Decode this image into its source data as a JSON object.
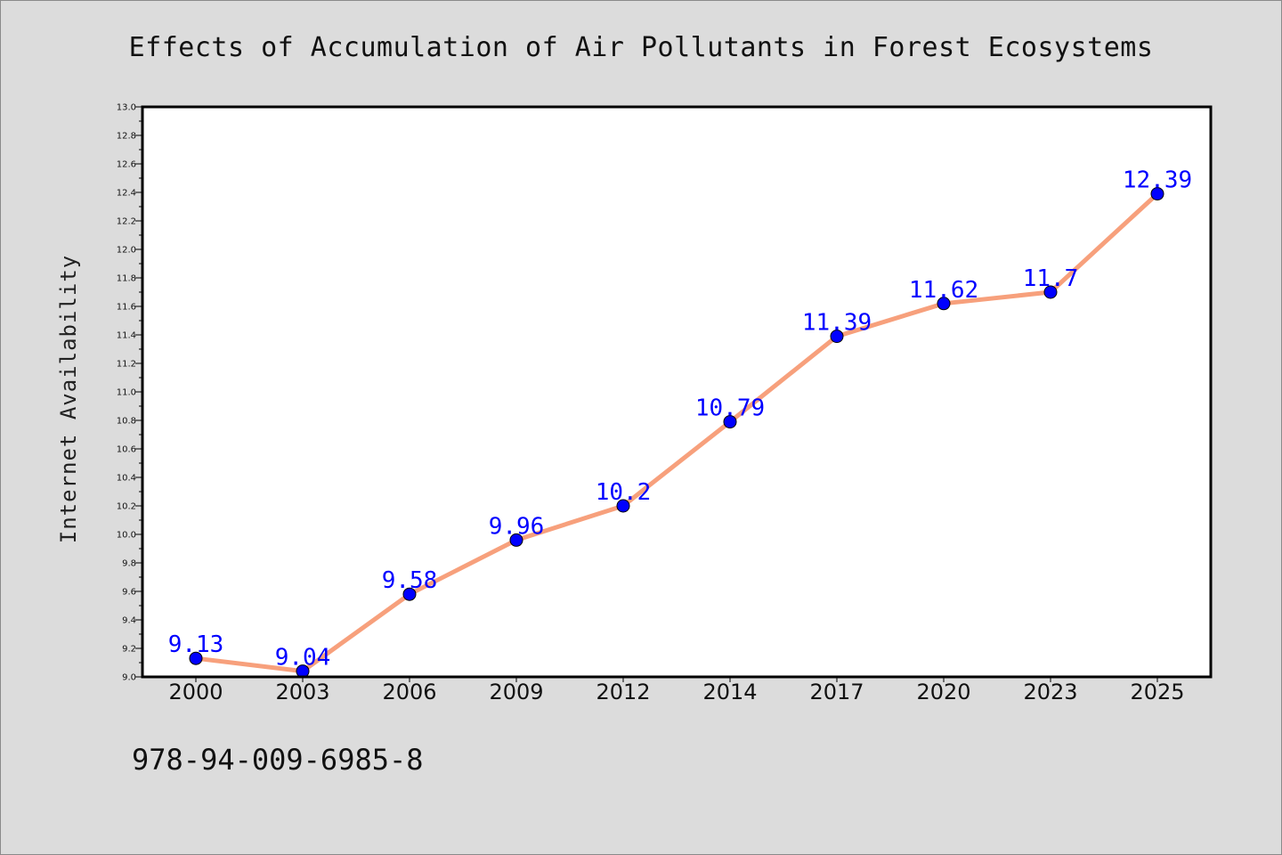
{
  "footer": {
    "code": "978-94-009-6985-8"
  },
  "colors": {
    "background": "#dcdcdc",
    "plot_background": "#ffffff",
    "line": "#f7a07c",
    "marker": "#0000ff",
    "label": "#0000ff"
  },
  "chart_data": {
    "type": "line",
    "title": "Effects of Accumulation of Air Pollutants in Forest Ecosystems",
    "xlabel": "",
    "ylabel": "Internet Availability",
    "categories": [
      "2000",
      "2003",
      "2006",
      "2009",
      "2012",
      "2014",
      "2017",
      "2020",
      "2023",
      "2025"
    ],
    "series": [
      {
        "values": [
          9.13,
          9.04,
          9.58,
          9.96,
          10.2,
          10.79,
          11.39,
          11.62,
          11.7,
          12.39
        ]
      }
    ],
    "data_labels": [
      "9.13",
      "9.04",
      "9.58",
      "9.96",
      "10.2",
      "10.79",
      "11.39",
      "11.62",
      "11.7",
      "12.39"
    ],
    "yticks": [
      "9.0",
      "9.2",
      "9.4",
      "9.6",
      "9.8",
      "10.0",
      "10.2",
      "10.4",
      "10.6",
      "10.8",
      "11.0",
      "11.2",
      "11.4",
      "11.6",
      "11.8",
      "12.0",
      "12.2",
      "12.4",
      "12.6",
      "12.8",
      "13.0"
    ],
    "ylim": [
      9.0,
      13.0
    ],
    "grid": false,
    "legend": "none"
  }
}
